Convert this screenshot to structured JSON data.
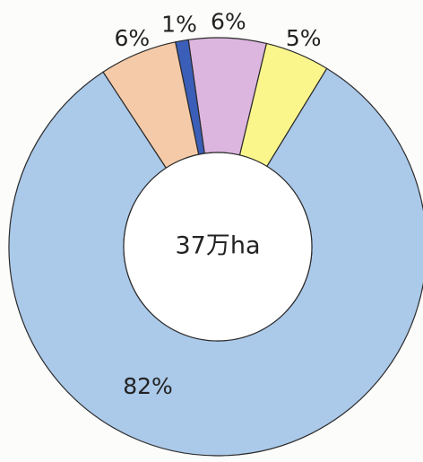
{
  "chart_data": {
    "type": "donut",
    "center_label": "37万ha",
    "categories": [
      null,
      null,
      null,
      null,
      null
    ],
    "values": [
      6,
      5,
      82,
      6,
      1
    ],
    "value_labels": [
      "6%",
      "5%",
      "82%",
      "6%",
      "1%"
    ],
    "colors": [
      "#dcb6de",
      "#fbf68c",
      "#abc9e9",
      "#f4caa8",
      "#3b5fb8"
    ]
  }
}
